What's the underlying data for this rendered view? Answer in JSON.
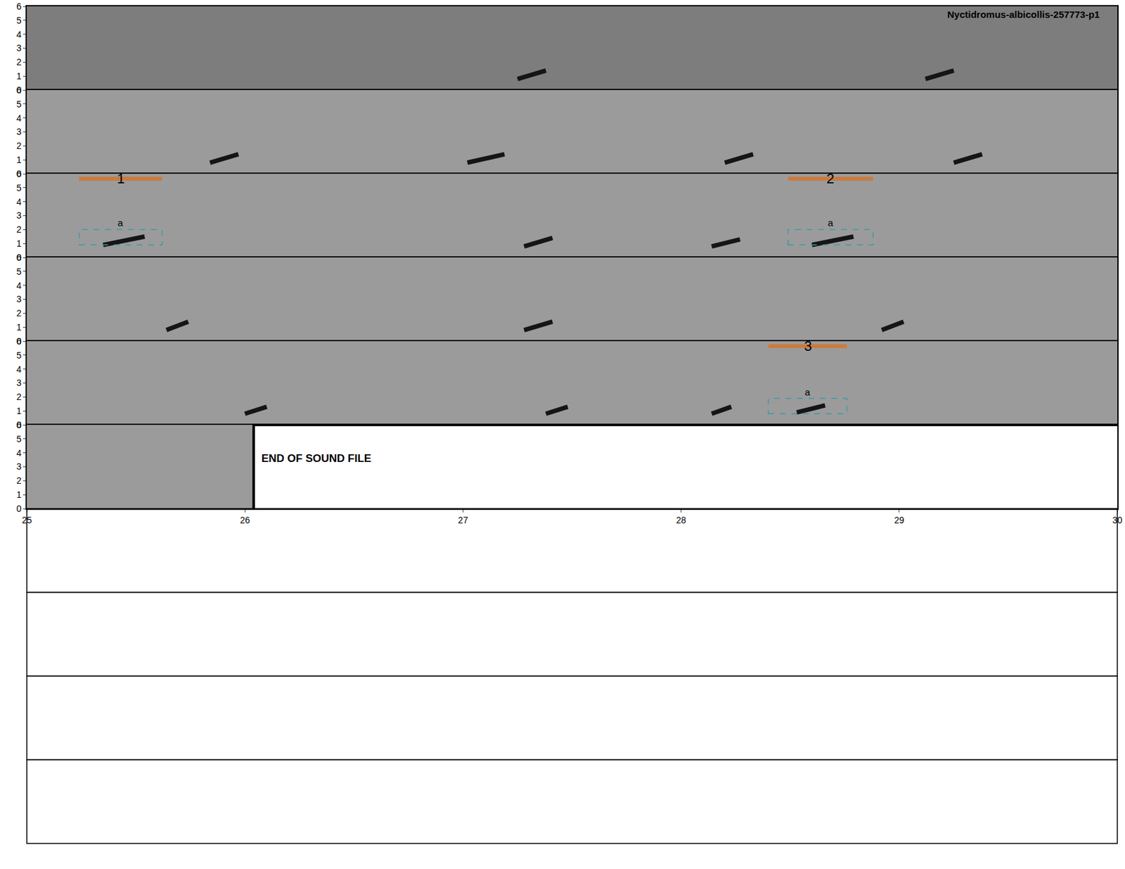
{
  "chart_data": {
    "type": "spectrogram",
    "title": "Nyctidromus-albicollis-257773-p1",
    "duration": 26.04,
    "ylim": [
      0,
      6
    ],
    "yticks": [
      0,
      1,
      2,
      3,
      4,
      5,
      6
    ],
    "panels": [
      {
        "xlim": [
          0,
          5
        ]
      },
      {
        "xlim": [
          5,
          10
        ]
      },
      {
        "xlim": [
          10,
          15
        ]
      },
      {
        "xlim": [
          15,
          20
        ]
      },
      {
        "xlim": [
          20,
          25
        ]
      },
      {
        "xlim": [
          25,
          30
        ],
        "xticks": [
          25,
          26,
          27,
          28,
          29,
          30
        ]
      }
    ],
    "empty_panels": 4,
    "end_text": "END OF SOUND FILE",
    "calls": [
      {
        "start": 2.25,
        "end": 2.38,
        "low": 0.8,
        "high": 1.4
      },
      {
        "start": 4.12,
        "end": 4.25,
        "low": 0.8,
        "high": 1.4
      },
      {
        "start": 5.84,
        "end": 5.97,
        "low": 0.8,
        "high": 1.4
      },
      {
        "start": 7.02,
        "end": 7.19,
        "low": 0.8,
        "high": 1.4
      },
      {
        "start": 8.2,
        "end": 8.33,
        "low": 0.8,
        "high": 1.4
      },
      {
        "start": 9.25,
        "end": 9.38,
        "low": 0.8,
        "high": 1.4
      },
      {
        "start": 10.35,
        "end": 10.54,
        "low": 0.9,
        "high": 1.5
      },
      {
        "start": 12.28,
        "end": 12.41,
        "low": 0.8,
        "high": 1.4
      },
      {
        "start": 13.14,
        "end": 13.27,
        "low": 0.8,
        "high": 1.3
      },
      {
        "start": 13.6,
        "end": 13.79,
        "low": 0.9,
        "high": 1.5
      },
      {
        "start": 15.64,
        "end": 15.74,
        "low": 0.8,
        "high": 1.4
      },
      {
        "start": 17.28,
        "end": 17.41,
        "low": 0.8,
        "high": 1.4
      },
      {
        "start": 18.92,
        "end": 19.02,
        "low": 0.8,
        "high": 1.4
      },
      {
        "start": 21.0,
        "end": 21.1,
        "low": 0.8,
        "high": 1.3
      },
      {
        "start": 22.38,
        "end": 22.48,
        "low": 0.8,
        "high": 1.3
      },
      {
        "start": 23.14,
        "end": 23.23,
        "low": 0.8,
        "high": 1.3
      },
      {
        "start": 23.53,
        "end": 23.66,
        "low": 0.9,
        "high": 1.4
      }
    ],
    "selections": [
      {
        "label": "1",
        "start": 10.24,
        "end": 10.62,
        "low": 0.9,
        "high": 2.0,
        "box_label": "a"
      },
      {
        "label": "2",
        "start": 13.49,
        "end": 13.88,
        "low": 0.9,
        "high": 2.0,
        "box_label": "a"
      },
      {
        "label": "3",
        "start": 23.4,
        "end": 23.76,
        "low": 0.8,
        "high": 1.9,
        "box_label": "a"
      }
    ]
  }
}
